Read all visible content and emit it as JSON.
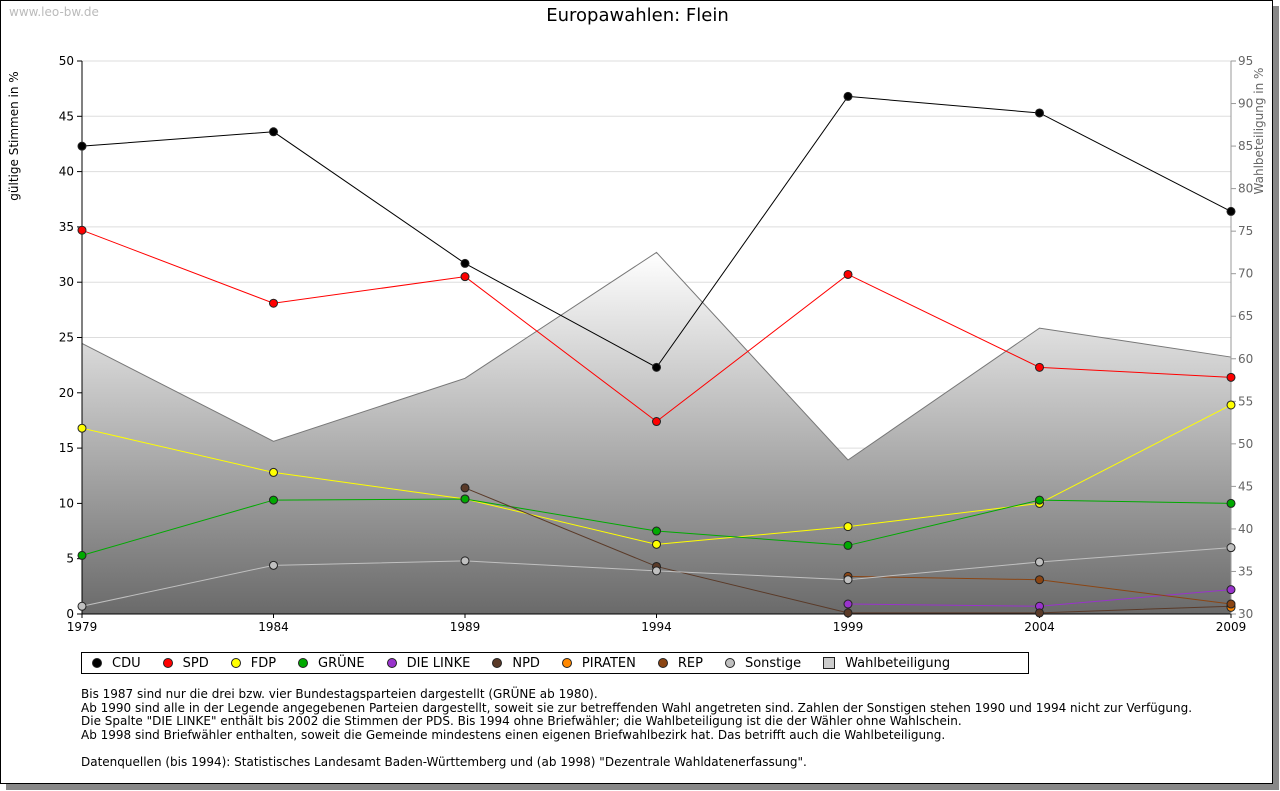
{
  "watermark": "www.leo-bw.de",
  "chart_data": {
    "type": "line",
    "title": "Europawahlen: Flein",
    "ylabel": "gültige Stimmen in %",
    "y2label": "Wahlbeteiligung in %",
    "ylim": [
      0,
      50
    ],
    "y2lim": [
      30,
      95
    ],
    "yticks": [
      0,
      5,
      10,
      15,
      20,
      25,
      30,
      35,
      40,
      45,
      50
    ],
    "y2ticks": [
      30,
      35,
      40,
      45,
      50,
      55,
      60,
      65,
      70,
      75,
      80,
      85,
      90,
      95
    ],
    "x": [
      1979,
      1984,
      1989,
      1994,
      1999,
      2004,
      2009
    ],
    "series": [
      {
        "name": "CDU",
        "color": "#000000",
        "values": [
          42.3,
          43.6,
          31.7,
          22.3,
          46.8,
          45.3,
          36.4
        ]
      },
      {
        "name": "SPD",
        "color": "#ff0000",
        "values": [
          34.7,
          28.1,
          30.5,
          17.4,
          30.7,
          22.3,
          21.4
        ]
      },
      {
        "name": "FDP",
        "color": "#ffff00",
        "values": [
          16.8,
          12.8,
          10.4,
          6.3,
          7.9,
          10.0,
          18.9
        ]
      },
      {
        "name": "GRÜNE",
        "color": "#00aa00",
        "values": [
          5.3,
          10.3,
          10.4,
          7.5,
          6.2,
          10.3,
          10.0
        ]
      },
      {
        "name": "DIE LINKE",
        "color": "#9933cc",
        "values": [
          null,
          null,
          null,
          null,
          0.9,
          0.7,
          2.2
        ]
      },
      {
        "name": "NPD",
        "color": "#5a3a28",
        "values": [
          null,
          null,
          11.4,
          4.3,
          0.1,
          0.1,
          0.7
        ]
      },
      {
        "name": "PIRATEN",
        "color": "#ff8800",
        "values": [
          null,
          null,
          null,
          null,
          null,
          null,
          0.6
        ]
      },
      {
        "name": "REP",
        "color": "#8b4513",
        "values": [
          null,
          null,
          null,
          null,
          3.4,
          3.1,
          0.9
        ]
      },
      {
        "name": "Sonstige",
        "color": "#c0c0c0",
        "values": [
          0.7,
          4.4,
          4.8,
          3.9,
          3.1,
          4.7,
          6.0
        ]
      }
    ],
    "turnout": {
      "name": "Wahlbeteiligung",
      "values": [
        61.8,
        50.3,
        57.7,
        72.5,
        48.1,
        63.6,
        60.2
      ]
    }
  },
  "notes": [
    "Bis 1987 sind nur die drei bzw. vier Bundestagsparteien dargestellt (GRÜNE ab 1980).",
    "Ab 1990 sind alle in der Legende angegebenen Parteien dargestellt, soweit sie zur betreffenden Wahl angetreten sind. Zahlen der Sonstigen stehen 1990 und 1994 nicht zur Verfügung.",
    "Die Spalte \"DIE LINKE\" enthält bis 2002 die Stimmen der PDS. Bis 1994 ohne Briefwähler; die Wahlbeteiligung ist die der Wähler ohne Wahlschein.",
    "Ab 1998 sind Briefwähler enthalten, soweit die Gemeinde mindestens einen eigenen Briefwahlbezirk hat. Das betrifft auch die Wahlbeteiligung.",
    "",
    "Datenquellen (bis 1994): Statistisches Landesamt Baden-Württemberg und (ab 1998) \"Dezentrale Wahldatenerfassung\"."
  ]
}
